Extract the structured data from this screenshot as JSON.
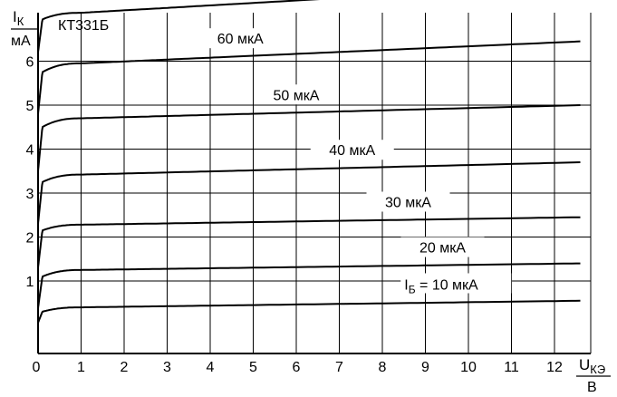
{
  "chart_data": {
    "type": "line",
    "title": "КТ331Б",
    "y_axis": {
      "symbol": "I",
      "subscript": "К",
      "unit": "мА"
    },
    "x_axis": {
      "symbol": "U",
      "subscript": "КЭ",
      "unit": "В"
    },
    "xlim": [
      0,
      12.6
    ],
    "ylim": [
      -0.65,
      7.75
    ],
    "x_ticks": [
      "0",
      "1",
      "2",
      "3",
      "4",
      "5",
      "6",
      "7",
      "8",
      "9",
      "10",
      "11",
      "12"
    ],
    "y_ticks": [
      "1",
      "2",
      "3",
      "4",
      "5",
      "6"
    ],
    "grid": true,
    "series_label_prefix": {
      "symbol": "I",
      "subscript": "Б",
      "equals": "="
    },
    "series": [
      {
        "label": "10 мкА",
        "y0": 0.05,
        "knee": 0.3,
        "sat": 0.4,
        "end": 0.55
      },
      {
        "label": "20 мкА",
        "y0": 0.38,
        "knee": 1.1,
        "sat": 1.25,
        "end": 1.4
      },
      {
        "label": "30 мкА",
        "y0": 1.3,
        "knee": 2.15,
        "sat": 2.28,
        "end": 2.45
      },
      {
        "label": "40 мкА",
        "y0": 2.3,
        "knee": 3.25,
        "sat": 3.42,
        "end": 3.7
      },
      {
        "label": "50 мкА",
        "y0": 3.5,
        "knee": 4.5,
        "sat": 4.7,
        "end": 5.0
      },
      {
        "label": "60 мкА",
        "y0": 4.8,
        "knee": 5.75,
        "sat": 5.95,
        "end": 6.45
      },
      {
        "label": "",
        "y0": 6.2,
        "knee": 6.95,
        "sat": 7.1,
        "end": 7.75
      }
    ],
    "colors": {
      "line": "#000000",
      "grid": "#000000",
      "background": "#ffffff"
    }
  }
}
